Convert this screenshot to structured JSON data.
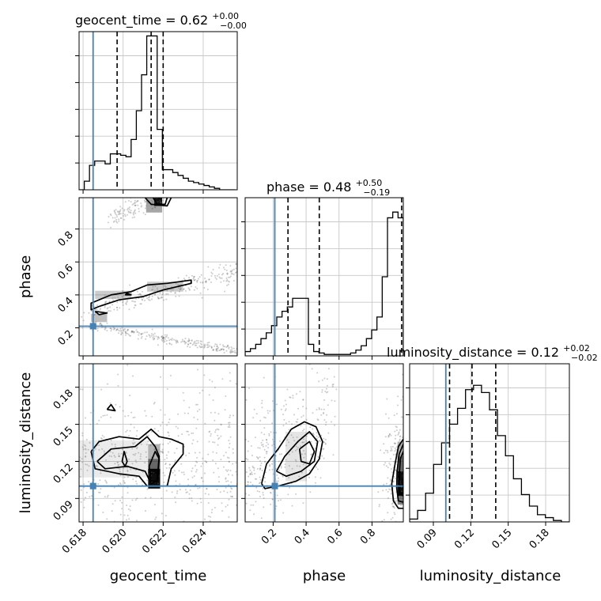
{
  "chart_data": {
    "type": "corner",
    "parameters": [
      "geocent_time",
      "phase",
      "luminosity_distance"
    ],
    "truths": {
      "geocent_time": 0.6185,
      "phase": 0.21,
      "luminosity_distance": 0.1
    },
    "ranges": {
      "geocent_time": [
        0.6178,
        0.6257
      ],
      "phase": [
        0.03,
        0.99
      ],
      "luminosity_distance": [
        0.071,
        0.199
      ]
    },
    "ticks": {
      "geocent_time": {
        "values": [
          0.618,
          0.62,
          0.622,
          0.624
        ],
        "labels": [
          "0.618",
          "0.620",
          "0.622",
          "0.624"
        ]
      },
      "phase": {
        "values": [
          0.2,
          0.4,
          0.6,
          0.8
        ],
        "labels": [
          "0.2",
          "0.4",
          "0.6",
          "0.8"
        ]
      },
      "luminosity_distance": {
        "values": [
          0.09,
          0.12,
          0.15,
          0.18
        ],
        "labels": [
          "0.09",
          "0.12",
          "0.15",
          "0.18"
        ]
      }
    },
    "titles": [
      {
        "main": "geocent_time = 0.62",
        "sup": "+0.00",
        "sub": "−0.00"
      },
      {
        "main": "phase = 0.48",
        "sup": "+0.50",
        "sub": "−0.19"
      },
      {
        "main": "luminosity_distance = 0.12",
        "sup": "+0.02",
        "sub": "−0.02"
      }
    ],
    "quantiles": {
      "geocent_time": [
        0.6197,
        0.6214,
        0.622
      ],
      "phase": [
        0.29,
        0.48,
        0.98
      ],
      "luminosity_distance": [
        0.103,
        0.121,
        0.14
      ]
    },
    "histograms": {
      "geocent_time": {
        "edges_start": 0.6178,
        "bin_width": 0.00026,
        "counts": [
          0,
          0.06,
          0.17,
          0.2,
          0.2,
          0.18,
          0.25,
          0.25,
          0.24,
          0.23,
          0.35,
          0.55,
          0.8,
          1.07,
          1.07,
          0.42,
          0.14,
          0.14,
          0.12,
          0.1,
          0.08,
          0.06,
          0.05,
          0.04,
          0.03,
          0.02,
          0.01,
          0.0,
          0.0,
          0.0
        ]
      },
      "phase": {
        "edges_start": 0.03,
        "bin_width": 0.032,
        "counts": [
          0.03,
          0.05,
          0.08,
          0.12,
          0.16,
          0.21,
          0.27,
          0.31,
          0.34,
          0.4,
          0.4,
          0.4,
          0.08,
          0.03,
          0.02,
          0.01,
          0.01,
          0.01,
          0.01,
          0.01,
          0.02,
          0.04,
          0.07,
          0.12,
          0.18,
          0.27,
          0.55,
          0.96,
          1.0,
          0.96
        ]
      },
      "luminosity_distance": {
        "edges_start": 0.071,
        "bin_width": 0.0064,
        "counts": [
          0.02,
          0.08,
          0.2,
          0.4,
          0.55,
          0.68,
          0.79,
          0.92,
          0.95,
          0.9,
          0.78,
          0.6,
          0.46,
          0.3,
          0.19,
          0.11,
          0.05,
          0.03,
          0.01,
          0.0
        ]
      }
    },
    "density_regions": {
      "phase_vs_geocent_time": [
        {
          "x": 0.62175,
          "y": 0.97,
          "w": 0.0004,
          "h": 0.06,
          "level": 0.9
        },
        {
          "x": 0.62155,
          "y": 0.95,
          "w": 0.0008,
          "h": 0.1,
          "level": 0.35
        },
        {
          "x": 0.6195,
          "y": 0.4,
          "w": 0.0018,
          "h": 0.05,
          "level": 0.2
        },
        {
          "x": 0.6221,
          "y": 0.45,
          "w": 0.0018,
          "h": 0.06,
          "level": 0.2
        },
        {
          "x": 0.6188,
          "y": 0.26,
          "w": 0.0008,
          "h": 0.05,
          "level": 0.25
        }
      ],
      "luminosity_distance_vs_geocent_time": [
        {
          "x": 0.62155,
          "y": 0.106,
          "w": 0.0006,
          "h": 0.016,
          "level": 0.95
        },
        {
          "x": 0.62155,
          "y": 0.116,
          "w": 0.0006,
          "h": 0.012,
          "level": 0.6
        },
        {
          "x": 0.62155,
          "y": 0.128,
          "w": 0.0006,
          "h": 0.012,
          "level": 0.3
        },
        {
          "x": 0.6195,
          "y": 0.122,
          "w": 0.0035,
          "h": 0.03,
          "level": 0.08
        }
      ],
      "luminosity_distance_vs_phase": [
        {
          "x": 0.975,
          "y": 0.102,
          "w": 0.04,
          "h": 0.02,
          "level": 0.95
        },
        {
          "x": 0.975,
          "y": 0.118,
          "w": 0.04,
          "h": 0.012,
          "level": 0.6
        },
        {
          "x": 0.975,
          "y": 0.09,
          "w": 0.04,
          "h": 0.01,
          "level": 0.5
        },
        {
          "x": 0.975,
          "y": 0.13,
          "w": 0.04,
          "h": 0.012,
          "level": 0.3
        },
        {
          "x": 0.34,
          "y": 0.124,
          "w": 0.13,
          "h": 0.04,
          "level": 0.1
        }
      ]
    },
    "contours": {
      "phase_vs_geocent_time": [
        [
          [
            0.6204,
            0.42
          ],
          [
            0.6212,
            0.46
          ],
          [
            0.6222,
            0.47
          ],
          [
            0.6234,
            0.49
          ],
          [
            0.6234,
            0.47
          ],
          [
            0.622,
            0.43
          ],
          [
            0.621,
            0.39
          ],
          [
            0.6198,
            0.37
          ],
          [
            0.6188,
            0.33
          ],
          [
            0.6184,
            0.31
          ],
          [
            0.6184,
            0.35
          ],
          [
            0.6194,
            0.4
          ],
          [
            0.6204,
            0.42
          ]
        ],
        [
          [
            0.6186,
            0.3
          ],
          [
            0.6188,
            0.28
          ],
          [
            0.6192,
            0.29
          ],
          [
            0.6186,
            0.3
          ]
        ],
        [
          [
            0.6201,
            0.4
          ],
          [
            0.6204,
            0.4
          ],
          [
            0.6202,
            0.41
          ],
          [
            0.6201,
            0.4
          ]
        ],
        [
          [
            0.6211,
            0.99
          ],
          [
            0.6214,
            0.95
          ],
          [
            0.6222,
            0.94
          ],
          [
            0.6224,
            0.99
          ]
        ],
        [
          [
            0.6215,
            0.99
          ],
          [
            0.6217,
            0.95
          ],
          [
            0.6221,
            0.95
          ],
          [
            0.6222,
            0.99
          ]
        ]
      ],
      "luminosity_distance_vs_geocent_time": [
        [
          [
            0.6184,
            0.128
          ],
          [
            0.6188,
            0.136
          ],
          [
            0.6198,
            0.14
          ],
          [
            0.6208,
            0.138
          ],
          [
            0.6214,
            0.146
          ],
          [
            0.6218,
            0.14
          ],
          [
            0.6224,
            0.138
          ],
          [
            0.623,
            0.134
          ],
          [
            0.623,
            0.126
          ],
          [
            0.6224,
            0.114
          ],
          [
            0.6222,
            0.1
          ],
          [
            0.6212,
            0.1
          ],
          [
            0.6208,
            0.108
          ],
          [
            0.6198,
            0.11
          ],
          [
            0.6186,
            0.114
          ],
          [
            0.6184,
            0.128
          ]
        ],
        [
          [
            0.6187,
            0.12
          ],
          [
            0.6194,
            0.13
          ],
          [
            0.6206,
            0.132
          ],
          [
            0.6212,
            0.14
          ],
          [
            0.6216,
            0.132
          ],
          [
            0.6218,
            0.124
          ],
          [
            0.6217,
            0.104
          ],
          [
            0.6214,
            0.102
          ],
          [
            0.6211,
            0.112
          ],
          [
            0.6202,
            0.116
          ],
          [
            0.6191,
            0.114
          ],
          [
            0.6187,
            0.12
          ]
        ],
        [
          [
            0.6213,
            0.116
          ],
          [
            0.6216,
            0.128
          ],
          [
            0.6218,
            0.122
          ],
          [
            0.6217,
            0.104
          ],
          [
            0.6214,
            0.104
          ],
          [
            0.6213,
            0.116
          ]
        ],
        [
          [
            0.61995,
            0.12
          ],
          [
            0.62005,
            0.128
          ],
          [
            0.6202,
            0.12
          ],
          [
            0.6201,
            0.116
          ],
          [
            0.61995,
            0.12
          ]
        ],
        [
          [
            0.6192,
            0.162
          ],
          [
            0.6194,
            0.166
          ],
          [
            0.6196,
            0.161
          ],
          [
            0.6192,
            0.162
          ]
        ]
      ],
      "luminosity_distance_vs_phase": [
        [
          [
            0.13,
            0.102
          ],
          [
            0.16,
            0.118
          ],
          [
            0.23,
            0.13
          ],
          [
            0.31,
            0.146
          ],
          [
            0.39,
            0.152
          ],
          [
            0.46,
            0.148
          ],
          [
            0.5,
            0.136
          ],
          [
            0.48,
            0.122
          ],
          [
            0.42,
            0.11
          ],
          [
            0.34,
            0.104
          ],
          [
            0.23,
            0.1
          ],
          [
            0.15,
            0.098
          ],
          [
            0.13,
            0.102
          ]
        ],
        [
          [
            0.22,
            0.112
          ],
          [
            0.27,
            0.124
          ],
          [
            0.35,
            0.136
          ],
          [
            0.42,
            0.144
          ],
          [
            0.47,
            0.136
          ],
          [
            0.45,
            0.12
          ],
          [
            0.37,
            0.112
          ],
          [
            0.28,
            0.108
          ],
          [
            0.22,
            0.112
          ]
        ],
        [
          [
            0.36,
            0.13
          ],
          [
            0.42,
            0.136
          ],
          [
            0.45,
            0.128
          ],
          [
            0.42,
            0.118
          ],
          [
            0.37,
            0.12
          ],
          [
            0.36,
            0.13
          ]
        ],
        [
          [
            0.99,
            0.138
          ],
          [
            0.96,
            0.132
          ],
          [
            0.94,
            0.118
          ],
          [
            0.92,
            0.102
          ],
          [
            0.93,
            0.088
          ],
          [
            0.96,
            0.082
          ],
          [
            0.99,
            0.082
          ]
        ],
        [
          [
            0.99,
            0.134
          ],
          [
            0.965,
            0.126
          ],
          [
            0.952,
            0.112
          ],
          [
            0.95,
            0.098
          ],
          [
            0.96,
            0.088
          ],
          [
            0.99,
            0.087
          ]
        ],
        [
          [
            0.99,
            0.128
          ],
          [
            0.972,
            0.122
          ],
          [
            0.965,
            0.108
          ],
          [
            0.968,
            0.094
          ],
          [
            0.99,
            0.092
          ]
        ]
      ]
    },
    "scatter_bands": {
      "phase_vs_geocent_time": [
        {
          "from": [
            0.6183,
            0.215
          ],
          "to": [
            0.6257,
            0.06
          ],
          "spread": 0.012,
          "density": 1.0
        },
        {
          "from": [
            0.6183,
            0.3
          ],
          "to": [
            0.6257,
            0.54
          ],
          "spread": 0.03,
          "density": 1.0
        },
        {
          "from": [
            0.6193,
            0.86
          ],
          "to": [
            0.6218,
            0.99
          ],
          "spread": 0.025,
          "density": 0.5
        }
      ],
      "luminosity_distance_vs_geocent_time": [
        {
          "from": [
            0.6178,
            0.12
          ],
          "to": [
            0.6257,
            0.12
          ],
          "spread": 0.03,
          "density": 2.2
        }
      ],
      "luminosity_distance_vs_phase": [
        {
          "from": [
            0.03,
            0.11
          ],
          "to": [
            0.55,
            0.15
          ],
          "spread": 0.025,
          "density": 1.4
        },
        {
          "from": [
            0.9,
            0.1
          ],
          "to": [
            0.99,
            0.13
          ],
          "spread": 0.025,
          "density": 0.8
        }
      ]
    },
    "style": {
      "line": "#000000",
      "truth": "#4682b4",
      "grid": "#c8c8c8",
      "scatter": "#6e6e6e",
      "density": "#000000"
    }
  }
}
